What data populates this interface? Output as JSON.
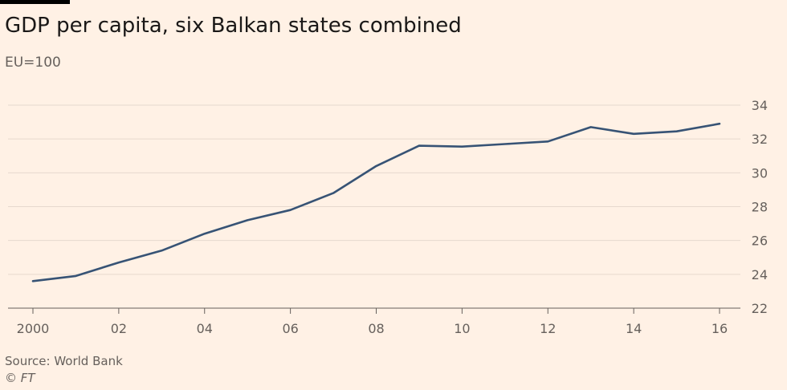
{
  "chart_data": {
    "type": "line",
    "title": "GDP per capita, six Balkan states combined",
    "subtitle": "EU=100",
    "x": [
      2000,
      2001,
      2002,
      2003,
      2004,
      2005,
      2006,
      2007,
      2008,
      2009,
      2010,
      2011,
      2012,
      2013,
      2014,
      2015,
      2016
    ],
    "series": [
      {
        "values": [
          23.6,
          23.9,
          24.7,
          25.4,
          26.4,
          27.2,
          27.8,
          28.8,
          30.4,
          31.6,
          31.55,
          31.7,
          31.85,
          32.7,
          32.3,
          32.45,
          32.9
        ],
        "color": "#375375"
      }
    ],
    "xticks": [
      2000,
      2002,
      2004,
      2006,
      2008,
      2010,
      2012,
      2014,
      2016
    ],
    "xtick_labels": [
      "2000",
      "02",
      "04",
      "06",
      "08",
      "10",
      "12",
      "14",
      "16"
    ],
    "yticks": [
      22,
      24,
      26,
      28,
      30,
      32,
      34
    ],
    "ytick_labels": [
      "22",
      "24",
      "26",
      "28",
      "30",
      "32",
      "34"
    ],
    "xlim": [
      2000,
      2016
    ],
    "ylim": [
      22,
      34
    ],
    "grid": "horizontal",
    "yaxis_position": "right",
    "source": "Source: World Bank",
    "credit": "© FT"
  },
  "colors": {
    "background": "#fff1e5",
    "gridline": "#e6d9ce",
    "axis": "#66605c",
    "line": "#375375"
  }
}
